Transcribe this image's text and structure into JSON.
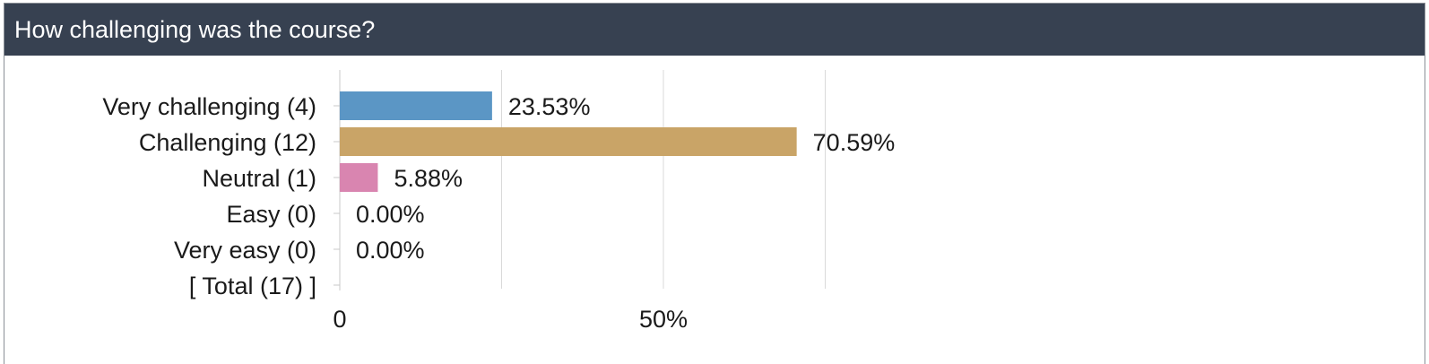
{
  "header": {
    "title": "How challenging was the course?"
  },
  "chart_data": {
    "type": "bar",
    "orientation": "horizontal",
    "title": "How challenging was the course?",
    "categories": [
      "Very challenging (4)",
      "Challenging (12)",
      "Neutral (1)",
      "Easy (0)",
      "Very easy (0)",
      "[ Total (17) ]"
    ],
    "values": [
      23.53,
      70.59,
      5.88,
      0.0,
      0.0,
      null
    ],
    "value_labels": [
      "23.53%",
      "70.59%",
      "5.88%",
      "0.00%",
      "0.00%",
      ""
    ],
    "colors": [
      "#5b96c5",
      "#c9a467",
      "#d985b0",
      "#5b96c5",
      "#5b96c5",
      "#5b96c5"
    ],
    "xlim": [
      0,
      100
    ],
    "x_ticks": [
      {
        "value": 0,
        "label": "0"
      },
      {
        "value": 50,
        "label": "50%"
      }
    ],
    "grid": true
  }
}
